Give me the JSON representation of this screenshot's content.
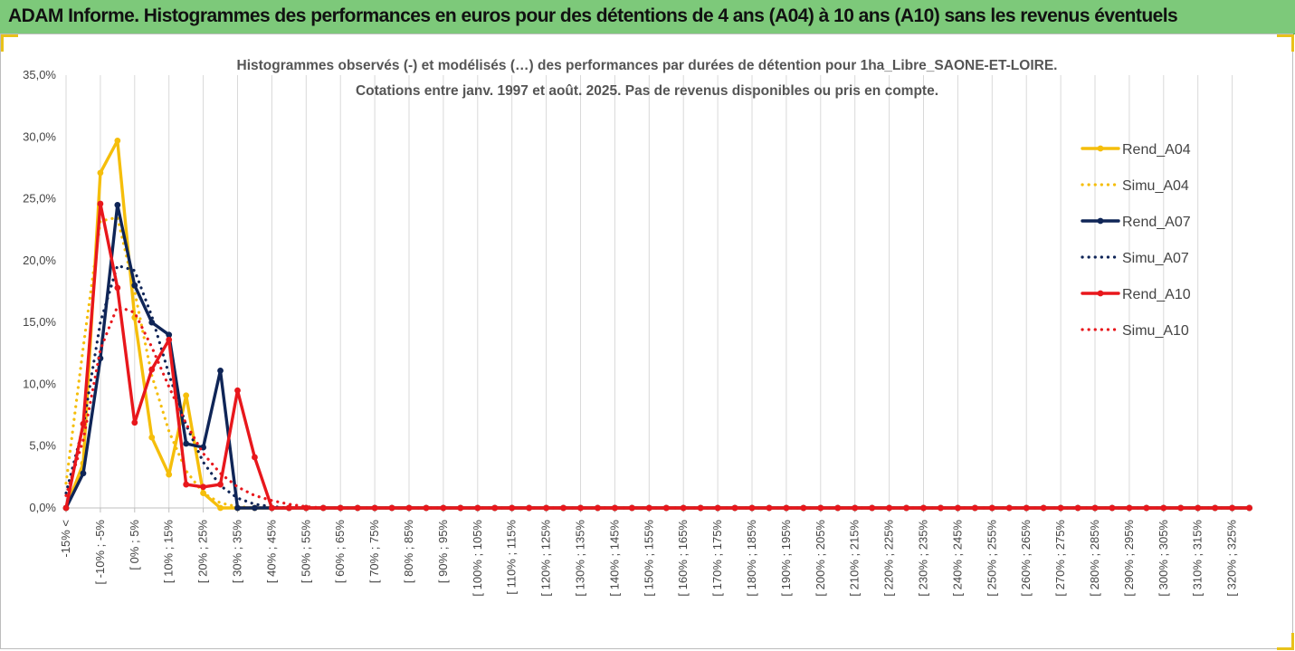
{
  "banner": {
    "title": "ADAM Informe. Histogrammes des performances en euros pour des détentions de 4 ans (A04) à 10 ans (A10) sans les revenus éventuels"
  },
  "chart_data": {
    "type": "line",
    "title_lines": [
      "Histogrammes observés (-)  et modélisés (…) des performances par durées de détention pour 1ha_Libre_SAONE-ET-LOIRE.",
      "Cotations entre janv. 1997 et août. 2025. Pas de revenus disponibles ou pris en compte."
    ],
    "xlabel": "",
    "ylabel": "",
    "ylim": [
      0,
      0.35
    ],
    "y_ticks": [
      0,
      0.05,
      0.1,
      0.15,
      0.2,
      0.25,
      0.3,
      0.35
    ],
    "y_tick_labels": [
      "0,0%",
      "5,0%",
      "10,0%",
      "15,0%",
      "20,0%",
      "25,0%",
      "30,0%",
      "35,0%"
    ],
    "grid": "vertical",
    "legend_position": "right",
    "num_points": 70,
    "x_tick_labels": [
      "-15% <",
      "[ -10% ; -5%",
      "[ 0% ; 5%",
      "[ 10% ; 15%",
      "[ 20% ; 25%",
      "[ 30% ; 35%",
      "[ 40% ; 45%",
      "[ 50% ; 55%",
      "[ 60% ; 65%",
      "[ 70% ; 75%",
      "[ 80% ; 85%",
      "[ 90% ; 95%",
      "[ 100% ; 105%",
      "[ 110% ; 115%",
      "[ 120% ; 125%",
      "[ 130% ; 135%",
      "[ 140% ; 145%",
      "[ 150% ; 155%",
      "[ 160% ; 165%",
      "[ 170% ; 175%",
      "[ 180% ; 185%",
      "[ 190% ; 195%",
      "[ 200% ; 205%",
      "[ 210% ; 215%",
      "[ 220% ; 225%",
      "[ 230% ; 235%",
      "[ 240% ; 245%",
      "[ 250% ; 255%",
      "[ 260% ; 265%",
      "[ 270% ; 275%",
      "[ 280% ; 285%",
      "[ 290% ; 295%",
      "[ 300% ; 305%",
      "[ 310% ; 315%",
      "[ 320% ; 325%"
    ],
    "series": [
      {
        "name": "Rend_A04",
        "style": "solid",
        "markers": true,
        "color": "#f5be0b",
        "values": [
          0,
          0.036,
          0.271,
          0.297,
          0.154,
          0.057,
          0.027,
          0.091,
          0.012,
          0,
          0
        ]
      },
      {
        "name": "Simu_A04",
        "style": "dotted",
        "markers": false,
        "color": "#f5be0b",
        "values": [
          0.02,
          0.13,
          0.232,
          0.235,
          0.175,
          0.107,
          0.062,
          0.03,
          0.012,
          0.004,
          0.001,
          0
        ]
      },
      {
        "name": "Rend_A07",
        "style": "solid",
        "markers": true,
        "color": "#0f2557",
        "values": [
          0,
          0.028,
          0.121,
          0.245,
          0.18,
          0.15,
          0.14,
          0.052,
          0.049,
          0.111,
          0,
          0,
          0,
          0
        ]
      },
      {
        "name": "Simu_A07",
        "style": "dotted",
        "markers": false,
        "color": "#0f2557",
        "values": [
          0.012,
          0.066,
          0.15,
          0.196,
          0.192,
          0.155,
          0.108,
          0.067,
          0.037,
          0.018,
          0.008,
          0.003,
          0.001,
          0
        ]
      },
      {
        "name": "Rend_A10",
        "style": "solid",
        "markers": true,
        "color": "#e8171c",
        "values": [
          0,
          0.068,
          0.246,
          0.178,
          0.069,
          0.112,
          0.136,
          0.019,
          0.017,
          0.019,
          0.095,
          0.041,
          0,
          0,
          0,
          0,
          0,
          0,
          0,
          0,
          0,
          0,
          0,
          0,
          0,
          0,
          0,
          0,
          0,
          0,
          0,
          0,
          0,
          0,
          0,
          0,
          0,
          0,
          0,
          0,
          0,
          0,
          0,
          0,
          0,
          0,
          0,
          0,
          0,
          0,
          0,
          0,
          0,
          0,
          0,
          0,
          0,
          0,
          0,
          0,
          0,
          0,
          0,
          0,
          0,
          0,
          0,
          0,
          0,
          0
        ]
      },
      {
        "name": "Simu_A10",
        "style": "dotted",
        "markers": false,
        "color": "#e8171c",
        "values": [
          0.01,
          0.055,
          0.128,
          0.163,
          0.158,
          0.13,
          0.098,
          0.068,
          0.044,
          0.028,
          0.017,
          0.01,
          0.006,
          0.003,
          0.001,
          0
        ]
      }
    ]
  }
}
